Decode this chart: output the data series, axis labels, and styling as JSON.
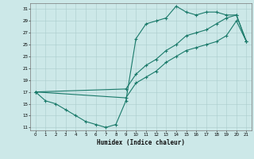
{
  "xlabel": "Humidex (Indice chaleur)",
  "bg_color": "#cce8e8",
  "grid_color": "#aacccc",
  "line_color": "#1a7a6a",
  "xlim": [
    -0.5,
    21.5
  ],
  "ylim": [
    10.5,
    32
  ],
  "yticks": [
    11,
    13,
    15,
    17,
    19,
    21,
    23,
    25,
    27,
    29,
    31
  ],
  "xticks": [
    0,
    1,
    2,
    3,
    4,
    5,
    6,
    7,
    8,
    9,
    10,
    11,
    12,
    13,
    14,
    15,
    16,
    17,
    18,
    19,
    20,
    21
  ],
  "curve1_x": [
    0,
    1,
    2,
    3,
    4,
    5,
    6,
    7,
    8,
    9,
    10,
    11,
    12,
    13,
    14,
    15,
    16,
    17,
    18,
    19,
    20,
    21
  ],
  "curve1_y": [
    17,
    15.5,
    15,
    14,
    13,
    12,
    11.5,
    11,
    11.5,
    15.5,
    26,
    28.5,
    29,
    29.5,
    31.5,
    30.5,
    30,
    30.5,
    30.5,
    30,
    30,
    25.5
  ],
  "curve2_x": [
    0,
    9,
    10,
    11,
    12,
    13,
    14,
    15,
    16,
    17,
    18,
    19,
    20,
    21
  ],
  "curve2_y": [
    17,
    17.5,
    20,
    21.5,
    22.5,
    24,
    25,
    26.5,
    27,
    27.5,
    28.5,
    29.5,
    30,
    25.5
  ],
  "curve3_x": [
    0,
    9,
    10,
    11,
    12,
    13,
    14,
    15,
    16,
    17,
    18,
    19,
    20,
    21
  ],
  "curve3_y": [
    17,
    16,
    18.5,
    19.5,
    20.5,
    22,
    23,
    24,
    24.5,
    25,
    25.5,
    26.5,
    29,
    25.5
  ]
}
